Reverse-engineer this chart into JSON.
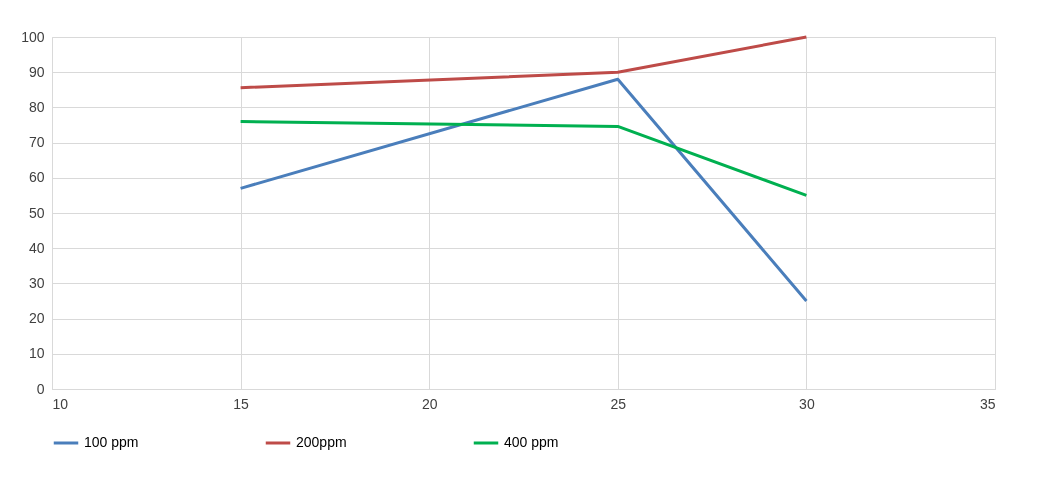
{
  "chart_data": {
    "type": "line",
    "x": [
      15,
      25,
      30
    ],
    "series": [
      {
        "name": "100 ppm",
        "color": "#4a7ebb",
        "values": [
          57,
          88,
          25
        ]
      },
      {
        "name": "200ppm",
        "color": "#be4b48",
        "values": [
          85.6,
          90,
          100
        ]
      },
      {
        "name": "400 ppm",
        "color": "#00b050",
        "values": [
          76,
          74.6,
          55
        ]
      }
    ],
    "xlim": [
      10,
      35
    ],
    "xticks": [
      10,
      15,
      20,
      25,
      30,
      35
    ],
    "ylim": [
      0,
      100
    ],
    "yticks": [
      0,
      10,
      20,
      30,
      40,
      50,
      60,
      70,
      80,
      90,
      100
    ],
    "grid": true,
    "legend": "bottom",
    "marker": "none",
    "line_style": "solid"
  }
}
